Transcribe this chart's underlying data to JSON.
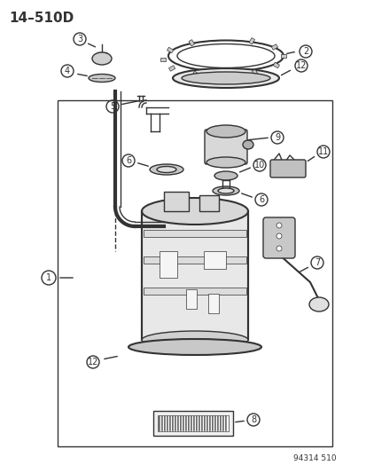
{
  "title": "14–510D",
  "catalog_num": "94314 510",
  "background_color": "#ffffff",
  "diagram_bg": "#ffffff",
  "line_color": "#333333",
  "part_numbers": [
    1,
    2,
    3,
    4,
    5,
    6,
    7,
    8,
    9,
    10,
    11,
    12
  ],
  "fig_width": 4.14,
  "fig_height": 5.33,
  "dpi": 100
}
